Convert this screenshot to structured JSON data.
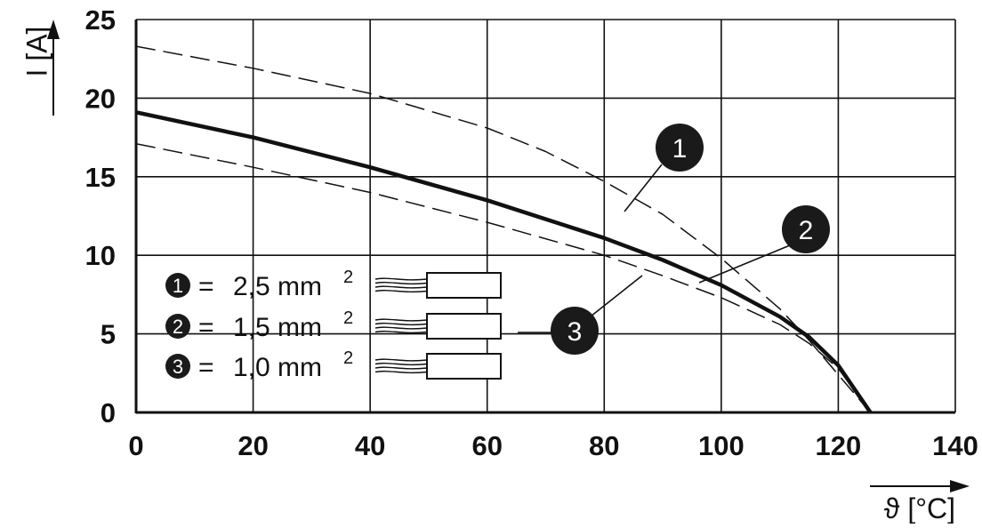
{
  "chart_data": {
    "type": "line",
    "title": "",
    "xlabel": "ϑ [°C]",
    "ylabel": "I [A]",
    "xlim": [
      0,
      140
    ],
    "ylim": [
      0,
      25
    ],
    "x_ticks": [
      "0",
      "20",
      "40",
      "60",
      "80",
      "100",
      "120",
      "140"
    ],
    "y_ticks": [
      "0",
      "5",
      "10",
      "15",
      "20",
      "25"
    ],
    "grid": true,
    "series": [
      {
        "name": "2,5 mm²",
        "marker": "1",
        "style": "dashed",
        "points": [
          [
            0,
            23.3
          ],
          [
            20,
            21.9
          ],
          [
            40,
            20.3
          ],
          [
            60,
            18.1
          ],
          [
            70,
            16.6
          ],
          [
            80,
            14.7
          ],
          [
            90,
            12.6
          ],
          [
            100,
            9.8
          ],
          [
            110,
            6.6
          ],
          [
            115,
            4.6
          ],
          [
            120,
            2.4
          ],
          [
            125.5,
            0
          ]
        ]
      },
      {
        "name": "1,5 mm²",
        "marker": "2",
        "style": "solid",
        "points": [
          [
            0,
            19.1
          ],
          [
            20,
            17.5
          ],
          [
            40,
            15.6
          ],
          [
            60,
            13.5
          ],
          [
            80,
            11.1
          ],
          [
            90,
            9.7
          ],
          [
            100,
            8.1
          ],
          [
            110,
            6.1
          ],
          [
            115,
            4.8
          ],
          [
            120,
            3.0
          ],
          [
            125.5,
            0
          ]
        ]
      },
      {
        "name": "1,0 mm²",
        "marker": "3",
        "style": "dashed",
        "points": [
          [
            0,
            17.1
          ],
          [
            20,
            15.6
          ],
          [
            40,
            14.0
          ],
          [
            60,
            12.1
          ],
          [
            80,
            10.0
          ],
          [
            90,
            8.7
          ],
          [
            100,
            7.3
          ],
          [
            110,
            5.6
          ],
          [
            115,
            4.4
          ],
          [
            120,
            2.8
          ],
          [
            125.5,
            0
          ]
        ]
      }
    ],
    "legend": {
      "placement": "lower-left",
      "items": [
        {
          "marker": "1",
          "sep": "=",
          "value": "2,5 mm",
          "sup": "2"
        },
        {
          "marker": "2",
          "sep": "=",
          "value": "1,5 mm",
          "sup": "2"
        },
        {
          "marker": "3",
          "sep": "=",
          "value": "1,0 mm",
          "sup": "2"
        }
      ]
    },
    "colors": {
      "line": "#111111",
      "grid": "#111111",
      "marker_fill": "#1a1a1a",
      "marker_text": "#ffffff",
      "background": "#ffffff"
    }
  }
}
